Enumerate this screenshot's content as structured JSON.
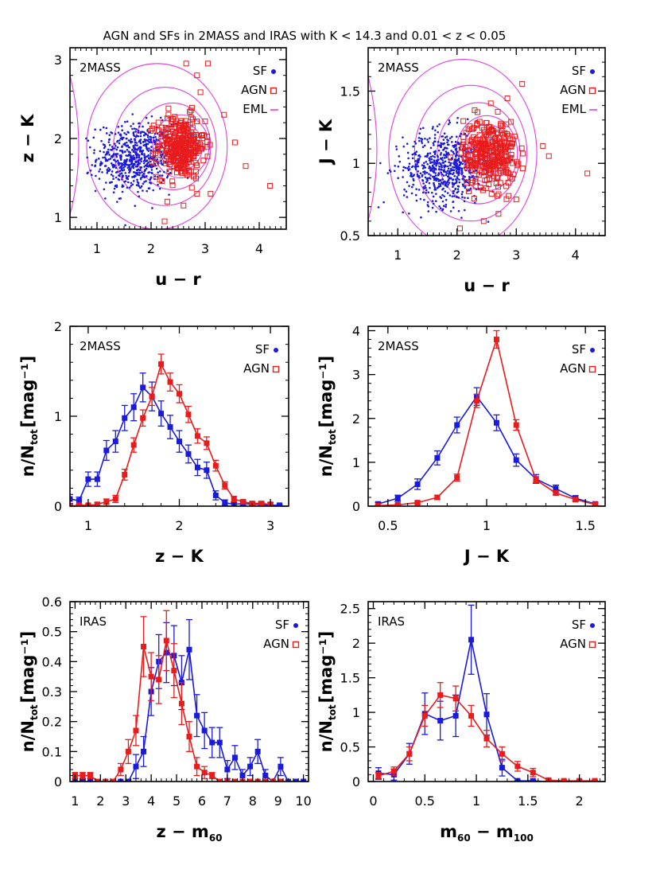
{
  "title": "AGN and SFs in 2MASS and IRAS with K < 14.3 and 0.01 < z < 0.05",
  "colors": {
    "sf": "#1a1adc",
    "agn": "#e81c1c",
    "eml": "#e040e0"
  },
  "chart_data": [
    {
      "id": "zk_ur",
      "type": "scatter",
      "tag": "2MASS",
      "xlabel": {
        "main": "u − r"
      },
      "ylabel": {
        "main": "z − K"
      },
      "xlim": [
        0.5,
        4.5
      ],
      "ylim": [
        0.85,
        3.15
      ],
      "xticks": [
        1,
        2,
        3,
        4
      ],
      "yticks": [
        1,
        2,
        3
      ],
      "legend": [
        {
          "name": "SF",
          "marker": "dot"
        },
        {
          "name": "AGN",
          "marker": "square"
        },
        {
          "name": "EML",
          "marker": "line"
        }
      ],
      "sf_cloud": {
        "center": [
          1.7,
          1.75
        ],
        "spread": [
          0.35,
          0.22
        ],
        "n": 650
      },
      "agn_cloud": {
        "center": [
          2.55,
          1.9
        ],
        "spread": [
          0.22,
          0.2
        ],
        "n": 300
      },
      "agn_outliers": [
        [
          4.2,
          1.4
        ],
        [
          3.75,
          1.65
        ],
        [
          3.35,
          2.3
        ],
        [
          3.05,
          2.95
        ],
        [
          2.85,
          2.8
        ],
        [
          2.65,
          2.95
        ],
        [
          3.55,
          1.95
        ],
        [
          2.3,
          1.2
        ],
        [
          2.25,
          0.95
        ],
        [
          2.6,
          1.15
        ],
        [
          3.1,
          1.3
        ]
      ],
      "contours": [
        {
          "cx": 2.55,
          "cy": 1.9,
          "rx": [
            0.05,
            0.1,
            0.15,
            0.22,
            0.3,
            0.4,
            0.52,
            0.7,
            0.95,
            1.3
          ],
          "ry": [
            0.04,
            0.08,
            0.12,
            0.17,
            0.22,
            0.3,
            0.4,
            0.55,
            0.75,
            1.05
          ]
        }
      ]
    },
    {
      "id": "jk_ur",
      "type": "scatter",
      "tag": "2MASS",
      "xlabel": {
        "main": "u − r"
      },
      "ylabel": {
        "main": "J − K"
      },
      "xlim": [
        0.5,
        4.5
      ],
      "ylim": [
        0.5,
        1.8
      ],
      "xticks": [
        1,
        2,
        3,
        4
      ],
      "yticks": [
        0.5,
        1,
        1.5
      ],
      "legend": [
        {
          "name": "SF",
          "marker": "dot"
        },
        {
          "name": "AGN",
          "marker": "square"
        },
        {
          "name": "EML",
          "marker": "line"
        }
      ],
      "sf_cloud": {
        "center": [
          1.8,
          0.97
        ],
        "spread": [
          0.35,
          0.13
        ],
        "n": 650
      },
      "agn_cloud": {
        "center": [
          2.55,
          1.07
        ],
        "spread": [
          0.22,
          0.12
        ],
        "n": 300
      },
      "agn_outliers": [
        [
          4.2,
          0.93
        ],
        [
          3.55,
          1.05
        ],
        [
          3.45,
          1.12
        ],
        [
          3.1,
          1.55
        ],
        [
          2.85,
          1.45
        ],
        [
          2.45,
          0.6
        ],
        [
          2.7,
          0.65
        ],
        [
          2.05,
          0.55
        ],
        [
          3.0,
          0.75
        ]
      ],
      "contours": [
        {
          "cx": 2.5,
          "cy": 1.07,
          "rx": [
            0.05,
            0.1,
            0.15,
            0.22,
            0.3,
            0.4,
            0.52,
            0.7,
            0.95,
            1.25
          ],
          "ry": [
            0.03,
            0.05,
            0.08,
            0.11,
            0.15,
            0.2,
            0.26,
            0.35,
            0.47,
            0.65
          ]
        }
      ]
    },
    {
      "id": "hist_zk",
      "type": "line",
      "tag": "2MASS",
      "xlabel": {
        "main": "z − K"
      },
      "ylabel": {
        "main": "n/N",
        "sub": "tot",
        "tail": "[mag⁻¹]"
      },
      "xlim": [
        0.8,
        3.2
      ],
      "ylim": [
        0,
        2.0
      ],
      "xticks": [
        1,
        2,
        3
      ],
      "yticks": [
        0,
        1,
        2
      ],
      "legend": [
        {
          "name": "SF",
          "marker": "dot"
        },
        {
          "name": "AGN",
          "marker": "square"
        }
      ],
      "series": [
        {
          "name": "SF",
          "x": [
            0.8,
            0.9,
            1.0,
            1.1,
            1.2,
            1.3,
            1.4,
            1.5,
            1.6,
            1.7,
            1.8,
            1.9,
            2.0,
            2.1,
            2.2,
            2.3,
            2.4,
            2.5,
            2.6,
            2.7,
            2.8,
            2.9,
            3.0,
            3.1
          ],
          "y": [
            0.08,
            0.06,
            0.3,
            0.3,
            0.62,
            0.72,
            0.98,
            1.1,
            1.32,
            1.22,
            1.03,
            0.88,
            0.72,
            0.58,
            0.43,
            0.4,
            0.12,
            0.04,
            0.02,
            0.03,
            0.02,
            0.02,
            0.01,
            0.01
          ],
          "err": [
            0.05,
            0.04,
            0.08,
            0.08,
            0.11,
            0.12,
            0.14,
            0.15,
            0.16,
            0.16,
            0.14,
            0.13,
            0.12,
            0.1,
            0.09,
            0.09,
            0.05,
            0.03,
            0.02,
            0.02,
            0.02,
            0.02,
            0.01,
            0.01
          ]
        },
        {
          "name": "AGN",
          "x": [
            0.8,
            0.9,
            1.0,
            1.1,
            1.2,
            1.3,
            1.4,
            1.5,
            1.6,
            1.7,
            1.8,
            1.9,
            2.0,
            2.1,
            2.2,
            2.3,
            2.4,
            2.5,
            2.6,
            2.7,
            2.8,
            2.9,
            3.0
          ],
          "y": [
            0.0,
            0.01,
            0.01,
            0.02,
            0.05,
            0.08,
            0.35,
            0.68,
            0.98,
            1.22,
            1.58,
            1.38,
            1.25,
            1.02,
            0.78,
            0.7,
            0.45,
            0.23,
            0.08,
            0.05,
            0.03,
            0.03,
            0.02
          ],
          "err": [
            0.01,
            0.01,
            0.01,
            0.02,
            0.03,
            0.04,
            0.06,
            0.08,
            0.09,
            0.1,
            0.11,
            0.1,
            0.1,
            0.09,
            0.08,
            0.07,
            0.06,
            0.04,
            0.03,
            0.02,
            0.02,
            0.02,
            0.02
          ]
        }
      ]
    },
    {
      "id": "hist_jk",
      "type": "line",
      "tag": "2MASS",
      "xlabel": {
        "main": "J − K"
      },
      "ylabel": {
        "main": "n/N",
        "sub": "tot",
        "tail": "[mag⁻¹]"
      },
      "xlim": [
        0.4,
        1.6
      ],
      "ylim": [
        0,
        4.1
      ],
      "xticks": [
        0.5,
        1,
        1.5
      ],
      "yticks": [
        0,
        1,
        2,
        3,
        4
      ],
      "legend": [
        {
          "name": "SF",
          "marker": "dot"
        },
        {
          "name": "AGN",
          "marker": "square"
        }
      ],
      "series": [
        {
          "name": "SF",
          "x": [
            0.45,
            0.55,
            0.65,
            0.75,
            0.85,
            0.95,
            1.05,
            1.15,
            1.25,
            1.35,
            1.45,
            1.55
          ],
          "y": [
            0.05,
            0.18,
            0.5,
            1.1,
            1.85,
            2.5,
            1.9,
            1.05,
            0.62,
            0.4,
            0.18,
            0.05
          ],
          "err": [
            0.04,
            0.07,
            0.12,
            0.16,
            0.18,
            0.2,
            0.18,
            0.14,
            0.1,
            0.08,
            0.06,
            0.04
          ]
        },
        {
          "name": "AGN",
          "x": [
            0.45,
            0.55,
            0.65,
            0.75,
            0.85,
            0.95,
            1.05,
            1.15,
            1.25,
            1.35,
            1.45,
            1.55
          ],
          "y": [
            0.01,
            0.03,
            0.08,
            0.2,
            0.65,
            2.4,
            3.8,
            1.85,
            0.6,
            0.3,
            0.15,
            0.04
          ],
          "err": [
            0.01,
            0.02,
            0.03,
            0.05,
            0.08,
            0.15,
            0.2,
            0.12,
            0.07,
            0.05,
            0.04,
            0.02
          ]
        }
      ]
    },
    {
      "id": "hist_zm60",
      "type": "line",
      "tag": "IRAS",
      "xlabel": {
        "main": "z − m",
        "sub": "60"
      },
      "ylabel": {
        "main": "n/N",
        "sub": "tot",
        "tail": "[mag⁻¹]"
      },
      "xlim": [
        0.8,
        10.2
      ],
      "ylim": [
        0,
        0.6
      ],
      "xticks": [
        1,
        2,
        3,
        4,
        5,
        6,
        7,
        8,
        9,
        10
      ],
      "yticks": [
        0,
        0.1,
        0.2,
        0.3,
        0.4,
        0.5,
        0.6
      ],
      "legend": [
        {
          "name": "SF",
          "marker": "dot"
        },
        {
          "name": "AGN",
          "marker": "square"
        }
      ],
      "series": [
        {
          "name": "SF",
          "x": [
            1.0,
            1.3,
            1.6,
            1.9,
            2.2,
            2.5,
            2.8,
            3.1,
            3.4,
            3.7,
            4.0,
            4.3,
            4.6,
            4.9,
            5.2,
            5.5,
            5.8,
            6.1,
            6.4,
            6.7,
            7.0,
            7.3,
            7.6,
            7.9,
            8.2,
            8.5,
            8.8,
            9.1,
            9.4,
            9.7,
            10.0
          ],
          "y": [
            0.0,
            0.0,
            0.0,
            0.0,
            0.0,
            0.0,
            0.0,
            0.0,
            0.05,
            0.1,
            0.3,
            0.4,
            0.43,
            0.42,
            0.33,
            0.44,
            0.22,
            0.17,
            0.13,
            0.13,
            0.04,
            0.08,
            0.02,
            0.05,
            0.1,
            0.02,
            0.0,
            0.05,
            0.0,
            0.0,
            0.0
          ],
          "err": [
            0.0,
            0.0,
            0.0,
            0.0,
            0.0,
            0.0,
            0.0,
            0.0,
            0.04,
            0.05,
            0.08,
            0.09,
            0.1,
            0.1,
            0.09,
            0.1,
            0.07,
            0.06,
            0.05,
            0.05,
            0.03,
            0.04,
            0.02,
            0.03,
            0.04,
            0.02,
            0.0,
            0.03,
            0.0,
            0.0,
            0.0
          ]
        },
        {
          "name": "AGN",
          "x": [
            1.0,
            1.3,
            1.6,
            1.9,
            2.2,
            2.5,
            2.8,
            3.1,
            3.4,
            3.7,
            4.0,
            4.3,
            4.6,
            4.9,
            5.2,
            5.5,
            5.8,
            6.1,
            6.4,
            6.7,
            7.0,
            7.3,
            7.6,
            7.9,
            8.2,
            8.5,
            8.8,
            9.1
          ],
          "y": [
            0.02,
            0.02,
            0.02,
            0.0,
            0.0,
            0.0,
            0.04,
            0.1,
            0.17,
            0.45,
            0.35,
            0.34,
            0.47,
            0.37,
            0.26,
            0.15,
            0.05,
            0.03,
            0.02,
            0.0,
            0.0,
            0.0,
            0.0,
            0.0,
            0.0,
            0.0,
            0.0,
            0.0
          ],
          "err": [
            0.01,
            0.01,
            0.01,
            0.0,
            0.0,
            0.0,
            0.02,
            0.04,
            0.05,
            0.1,
            0.08,
            0.08,
            0.1,
            0.09,
            0.07,
            0.05,
            0.03,
            0.02,
            0.01,
            0.0,
            0.0,
            0.0,
            0.0,
            0.0,
            0.0,
            0.0,
            0.0,
            0.0
          ]
        }
      ]
    },
    {
      "id": "hist_m60m100",
      "type": "line",
      "tag": "IRAS",
      "xlabel": {
        "main": "m",
        "sub": "60",
        "main2": " − m",
        "sub2": "100"
      },
      "ylabel": {
        "main": "n/N",
        "sub": "tot",
        "tail": "[mag⁻¹]"
      },
      "xlim": [
        -0.05,
        2.25
      ],
      "ylim": [
        0,
        2.6
      ],
      "xticks": [
        0,
        0.5,
        1,
        1.5,
        2
      ],
      "yticks": [
        0,
        0.5,
        1,
        1.5,
        2,
        2.5
      ],
      "legend": [
        {
          "name": "SF",
          "marker": "dot"
        },
        {
          "name": "AGN",
          "marker": "square"
        }
      ],
      "series": [
        {
          "name": "SF",
          "x": [
            0.05,
            0.2,
            0.35,
            0.5,
            0.65,
            0.8,
            0.95,
            1.1,
            1.25,
            1.4,
            1.55,
            1.7,
            1.85,
            2.0,
            2.15
          ],
          "y": [
            0.12,
            0.1,
            0.4,
            0.98,
            0.88,
            0.95,
            2.05,
            0.97,
            0.2,
            0.01,
            0.01,
            0.0,
            0.0,
            0.0,
            0.0
          ],
          "err": [
            0.08,
            0.08,
            0.15,
            0.3,
            0.28,
            0.3,
            0.5,
            0.3,
            0.12,
            0.01,
            0.01,
            0.0,
            0.0,
            0.0,
            0.0
          ]
        },
        {
          "name": "AGN",
          "x": [
            0.05,
            0.2,
            0.35,
            0.5,
            0.65,
            0.8,
            0.95,
            1.1,
            1.25,
            1.4,
            1.55,
            1.7,
            1.85,
            2.0,
            2.15
          ],
          "y": [
            0.08,
            0.15,
            0.4,
            0.95,
            1.25,
            1.2,
            0.95,
            0.62,
            0.4,
            0.22,
            0.13,
            0.02,
            0.01,
            0.01,
            0.01
          ],
          "err": [
            0.05,
            0.06,
            0.1,
            0.15,
            0.18,
            0.18,
            0.15,
            0.12,
            0.1,
            0.07,
            0.06,
            0.02,
            0.01,
            0.01,
            0.01
          ]
        }
      ]
    }
  ]
}
